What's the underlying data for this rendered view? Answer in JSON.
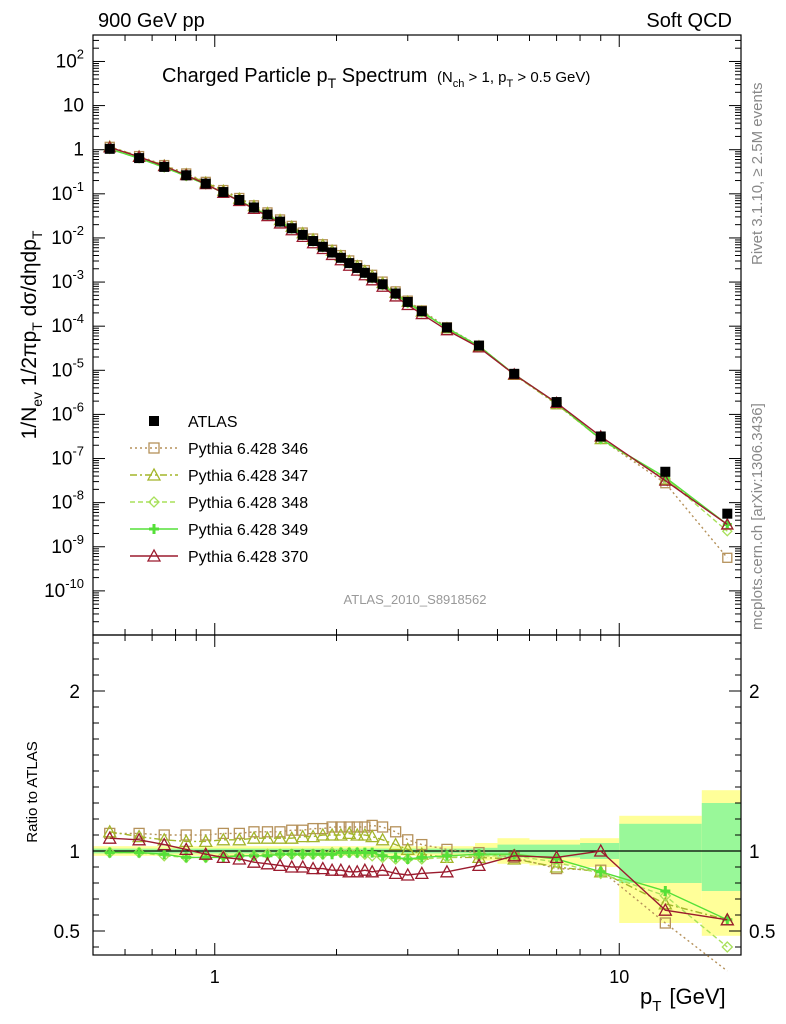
{
  "header": {
    "left": "900 GeV pp",
    "right": "Soft QCD"
  },
  "side_text": {
    "rivet": "Rivet 3.1.10, ≥ 2.5M events",
    "mcplots": "mcplots.cern.ch [arXiv:1306.3436]"
  },
  "analysis_tag": "ATLAS_2010_S8918562",
  "chart_data": [
    {
      "type": "line",
      "title": "Charged Particle p_T Spectrum",
      "subtitle": "(N_ch > 1, p_T > 0.5 GeV)",
      "ylabel": "1/N_ev 1/2πp_T dσ/dηdp_T",
      "xscale": "log",
      "yscale": "log",
      "xlim": [
        0.5,
        20
      ],
      "ylim_exp": [
        -11,
        2.6
      ],
      "ytick_labels": [
        "10^-10",
        "10^-9",
        "10^-8",
        "10^-7",
        "10^-6",
        "10^-5",
        "10^-4",
        "10^-3",
        "10^-2",
        "10^-1",
        "1",
        "10",
        "10^2"
      ],
      "legend": [
        {
          "name": "ATLAS",
          "color": "#000000",
          "marker": "square-filled",
          "dash": ""
        },
        {
          "name": "Pythia 6.428 346",
          "color": "#b5915a",
          "marker": "square",
          "dash": "2,3"
        },
        {
          "name": "Pythia 6.428 347",
          "color": "#a3b52a",
          "marker": "triangle",
          "dash": "7,3,2,3"
        },
        {
          "name": "Pythia 6.428 348",
          "color": "#a8e05a",
          "marker": "diamond",
          "dash": "5,3"
        },
        {
          "name": "Pythia 6.428 349",
          "color": "#55e038",
          "marker": "cross",
          "dash": ""
        },
        {
          "name": "Pythia 6.428 370",
          "color": "#9b1b2e",
          "marker": "triangle",
          "dash": ""
        }
      ],
      "legend_position": "lower-left",
      "x": [
        0.55,
        0.65,
        0.75,
        0.85,
        0.95,
        1.05,
        1.15,
        1.25,
        1.35,
        1.45,
        1.55,
        1.65,
        1.75,
        1.85,
        1.95,
        2.05,
        2.15,
        2.25,
        2.35,
        2.45,
        2.6,
        2.8,
        3.0,
        3.25,
        3.75,
        4.5,
        5.5,
        7.0,
        9.0,
        13.0,
        18.5
      ],
      "atlas_exp": [
        0.02,
        -0.19,
        -0.39,
        -0.58,
        -0.77,
        -0.96,
        -1.14,
        -1.31,
        -1.47,
        -1.63,
        -1.78,
        -1.93,
        -2.07,
        -2.2,
        -2.33,
        -2.45,
        -2.57,
        -2.68,
        -2.79,
        -2.9,
        -3.05,
        -3.26,
        -3.45,
        -3.66,
        -4.03,
        -4.44,
        -5.08,
        -5.72,
        -6.5,
        -7.3,
        -8.25
      ]
    },
    {
      "type": "line",
      "ylabel": "Ratio to ATLAS",
      "xscale": "log",
      "xlim": [
        0.5,
        20
      ],
      "ylim": [
        0.35,
        2.35
      ],
      "yticks": [
        0.5,
        1,
        2
      ],
      "xticks": [
        1,
        10
      ],
      "xlabel": "p_T [GeV]",
      "series": [
        {
          "name": "Pythia 6.428 346",
          "values": [
            1.11,
            1.11,
            1.1,
            1.1,
            1.1,
            1.11,
            1.11,
            1.12,
            1.12,
            1.12,
            1.13,
            1.13,
            1.14,
            1.14,
            1.15,
            1.15,
            1.15,
            1.15,
            1.15,
            1.16,
            1.15,
            1.12,
            1.07,
            1.04,
            1.01,
            0.99,
            0.96,
            0.89,
            0.88,
            0.55,
            0.1
          ]
        },
        {
          "name": "Pythia 6.428 347",
          "values": [
            1.12,
            1.09,
            1.07,
            1.06,
            1.06,
            1.07,
            1.07,
            1.08,
            1.08,
            1.08,
            1.08,
            1.09,
            1.09,
            1.1,
            1.1,
            1.1,
            1.11,
            1.1,
            1.1,
            1.09,
            1.07,
            1.04,
            1.01,
            0.98,
            0.96,
            0.96,
            0.95,
            0.9,
            0.87,
            0.67,
            0.57
          ]
        },
        {
          "name": "Pythia 6.428 348",
          "values": [
            0.99,
            0.99,
            0.97,
            0.96,
            0.96,
            0.97,
            0.97,
            0.97,
            0.98,
            0.98,
            0.98,
            0.98,
            0.98,
            0.98,
            0.99,
            0.99,
            0.99,
            0.99,
            0.98,
            0.97,
            0.96,
            0.95,
            0.95,
            0.95,
            0.96,
            0.97,
            0.97,
            0.93,
            0.86,
            0.72,
            0.4
          ]
        },
        {
          "name": "Pythia 6.428 349",
          "values": [
            0.99,
            0.99,
            0.98,
            0.96,
            0.96,
            0.96,
            0.97,
            0.97,
            0.97,
            0.98,
            0.98,
            0.98,
            0.98,
            0.98,
            0.98,
            0.99,
            0.99,
            0.99,
            0.99,
            0.99,
            0.97,
            0.96,
            0.95,
            0.96,
            0.97,
            0.98,
            0.98,
            0.95,
            0.87,
            0.75,
            0.57
          ]
        },
        {
          "name": "Pythia 6.428 370",
          "values": [
            1.08,
            1.07,
            1.04,
            1.01,
            0.98,
            0.96,
            0.95,
            0.93,
            0.92,
            0.91,
            0.9,
            0.9,
            0.89,
            0.89,
            0.88,
            0.88,
            0.87,
            0.87,
            0.88,
            0.87,
            0.88,
            0.86,
            0.85,
            0.86,
            0.87,
            0.91,
            0.97,
            0.96,
            1.0,
            0.63,
            0.57
          ]
        }
      ],
      "bands": [
        {
          "x0": 0.5,
          "x1": 4.4,
          "yellow": [
            0.97,
            1.03
          ],
          "green": [
            0.985,
            1.015
          ]
        },
        {
          "x0": 4.4,
          "x1": 5.0,
          "yellow": [
            0.94,
            1.05
          ],
          "green": [
            0.97,
            1.02
          ]
        },
        {
          "x0": 5.0,
          "x1": 6.0,
          "yellow": [
            0.92,
            1.08
          ],
          "green": [
            0.96,
            1.04
          ]
        },
        {
          "x0": 6.0,
          "x1": 8.0,
          "yellow": [
            0.91,
            1.07
          ],
          "green": [
            0.96,
            1.04
          ]
        },
        {
          "x0": 8.0,
          "x1": 10.0,
          "yellow": [
            0.9,
            1.08
          ],
          "green": [
            0.95,
            1.05
          ]
        },
        {
          "x0": 10.0,
          "x1": 16.0,
          "yellow": [
            0.55,
            1.22
          ],
          "green": [
            0.8,
            1.17
          ]
        },
        {
          "x0": 16.0,
          "x1": 20.0,
          "yellow": [
            0.47,
            1.38
          ],
          "green": [
            0.75,
            1.3
          ]
        }
      ]
    }
  ]
}
